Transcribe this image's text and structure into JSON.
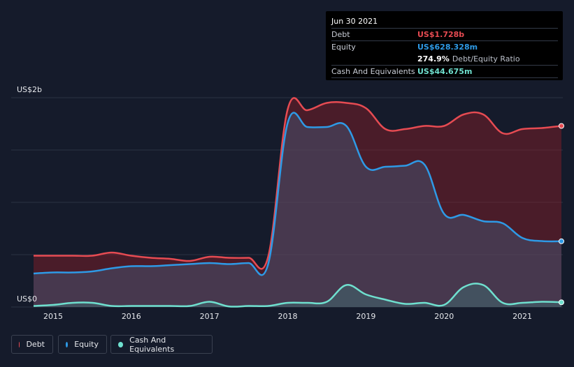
{
  "tooltip": {
    "date": "Jun 30 2021",
    "rows": [
      {
        "label": "Debt",
        "value": "US$1.728b",
        "color": "#e64b52"
      },
      {
        "label": "Equity",
        "value": "US$628.328m",
        "color": "#2e9ae6"
      },
      {
        "label": "",
        "value": "274.9%",
        "sub": "Debt/Equity Ratio",
        "color": "#ffffff"
      },
      {
        "label": "Cash And Equivalents",
        "value": "US$44.675m",
        "color": "#6fe0cf"
      }
    ]
  },
  "legend": [
    {
      "label": "Debt",
      "color": "#e64b52"
    },
    {
      "label": "Equity",
      "color": "#2e9ae6"
    },
    {
      "label": "Cash And Equivalents",
      "color": "#6fe0cf"
    }
  ],
  "chart_data": {
    "type": "area",
    "ylabel": "",
    "y_top_label": "US$2b",
    "y_bottom_label": "US$0",
    "ylim": [
      0,
      2.0
    ],
    "xlim": [
      2014.75,
      2021.5
    ],
    "x_ticks": [
      "2015",
      "2016",
      "2017",
      "2018",
      "2019",
      "2020",
      "2021"
    ],
    "series": [
      {
        "name": "Debt",
        "color": "#e64b52",
        "x": [
          2014.75,
          2015.0,
          2015.25,
          2015.5,
          2015.75,
          2016.0,
          2016.25,
          2016.5,
          2016.75,
          2017.0,
          2017.25,
          2017.5,
          2017.75,
          2018.0,
          2018.25,
          2018.5,
          2018.75,
          2019.0,
          2019.25,
          2019.5,
          2019.75,
          2020.0,
          2020.25,
          2020.5,
          2020.75,
          2021.0,
          2021.25,
          2021.5
        ],
        "values": [
          0.49,
          0.49,
          0.49,
          0.49,
          0.52,
          0.49,
          0.47,
          0.46,
          0.44,
          0.48,
          0.47,
          0.47,
          0.48,
          1.89,
          1.88,
          1.95,
          1.95,
          1.9,
          1.7,
          1.7,
          1.73,
          1.73,
          1.84,
          1.84,
          1.66,
          1.7,
          1.71,
          1.73
        ]
      },
      {
        "name": "Equity",
        "color": "#2e9ae6",
        "x": [
          2014.75,
          2015.0,
          2015.25,
          2015.5,
          2015.75,
          2016.0,
          2016.25,
          2016.5,
          2016.75,
          2017.0,
          2017.25,
          2017.5,
          2017.75,
          2018.0,
          2018.25,
          2018.5,
          2018.75,
          2019.0,
          2019.25,
          2019.5,
          2019.75,
          2020.0,
          2020.25,
          2020.5,
          2020.75,
          2021.0,
          2021.25,
          2021.5
        ],
        "values": [
          0.32,
          0.33,
          0.33,
          0.34,
          0.37,
          0.39,
          0.39,
          0.4,
          0.41,
          0.42,
          0.41,
          0.42,
          0.41,
          1.76,
          1.72,
          1.72,
          1.73,
          1.34,
          1.34,
          1.35,
          1.36,
          0.89,
          0.88,
          0.82,
          0.8,
          0.66,
          0.63,
          0.628
        ]
      },
      {
        "name": "Cash And Equivalents",
        "color": "#6fe0cf",
        "x": [
          2014.75,
          2015.0,
          2015.25,
          2015.5,
          2015.75,
          2016.0,
          2016.25,
          2016.5,
          2016.75,
          2017.0,
          2017.25,
          2017.5,
          2017.75,
          2018.0,
          2018.25,
          2018.5,
          2018.75,
          2019.0,
          2019.25,
          2019.5,
          2019.75,
          2020.0,
          2020.25,
          2020.5,
          2020.75,
          2021.0,
          2021.25,
          2021.5
        ],
        "values": [
          0.01,
          0.02,
          0.04,
          0.04,
          0.01,
          0.01,
          0.01,
          0.01,
          0.01,
          0.05,
          0.005,
          0.01,
          0.01,
          0.04,
          0.04,
          0.05,
          0.21,
          0.12,
          0.07,
          0.03,
          0.04,
          0.02,
          0.19,
          0.21,
          0.04,
          0.04,
          0.05,
          0.045
        ]
      }
    ]
  }
}
